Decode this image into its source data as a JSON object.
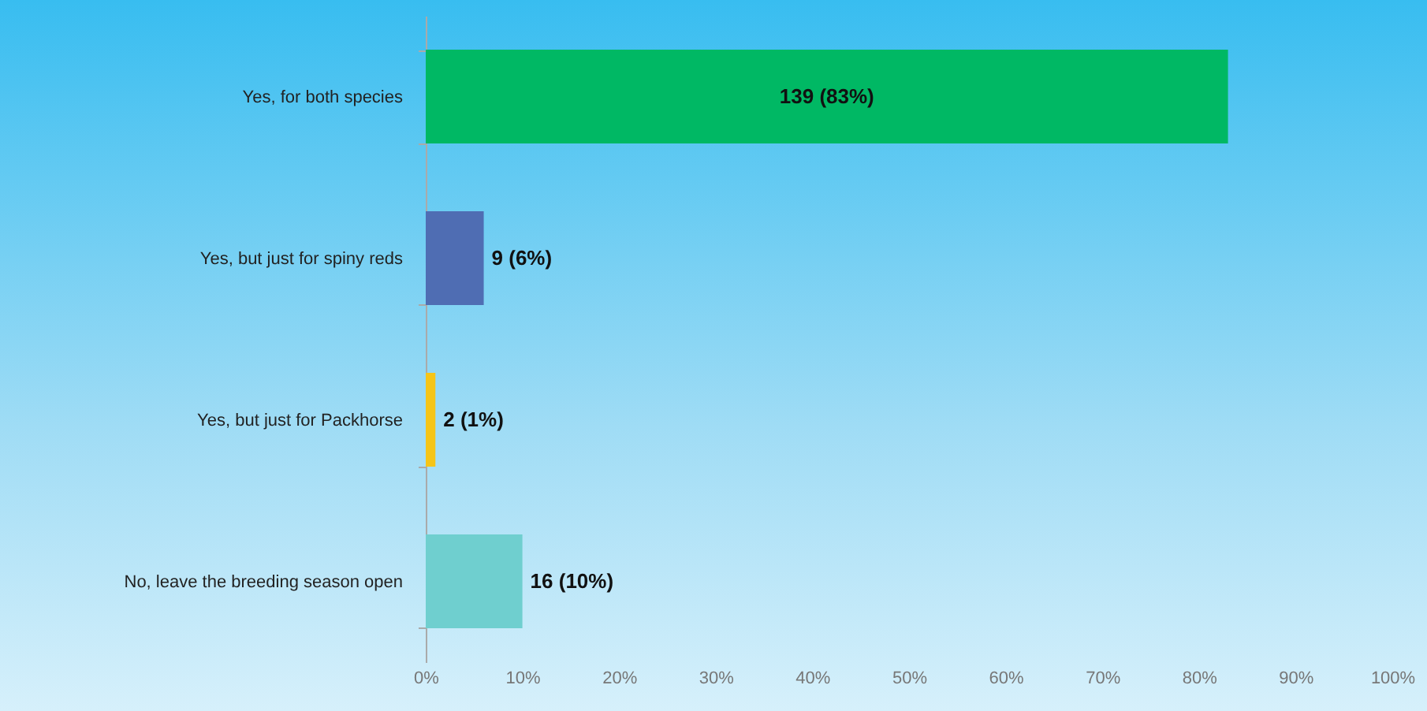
{
  "chart_data": {
    "type": "bar",
    "orientation": "horizontal",
    "categories": [
      "Yes, for both species",
      "Yes, but just for spiny reds",
      "Yes, but just for Packhorse",
      "No, leave the breeding season open"
    ],
    "values": [
      83,
      6,
      1,
      10
    ],
    "colors": [
      "#00b864",
      "#4f6db3",
      "#f5c518",
      "#6fcfcf"
    ],
    "value_labels": [
      "139 (83%)",
      "9 (6%)",
      "2 (1%)",
      "16 (10%)"
    ],
    "xlim": [
      0,
      100
    ],
    "xticks": [
      {
        "value": 0,
        "label": "0%"
      },
      {
        "value": 10,
        "label": "10%"
      },
      {
        "value": 20,
        "label": "20%"
      },
      {
        "value": 30,
        "label": "30%"
      },
      {
        "value": 40,
        "label": "40%"
      },
      {
        "value": 50,
        "label": "50%"
      },
      {
        "value": 60,
        "label": "60%"
      },
      {
        "value": 70,
        "label": "70%"
      },
      {
        "value": 80,
        "label": "80%"
      },
      {
        "value": 90,
        "label": "90%"
      },
      {
        "value": 100,
        "label": "100%"
      }
    ]
  }
}
